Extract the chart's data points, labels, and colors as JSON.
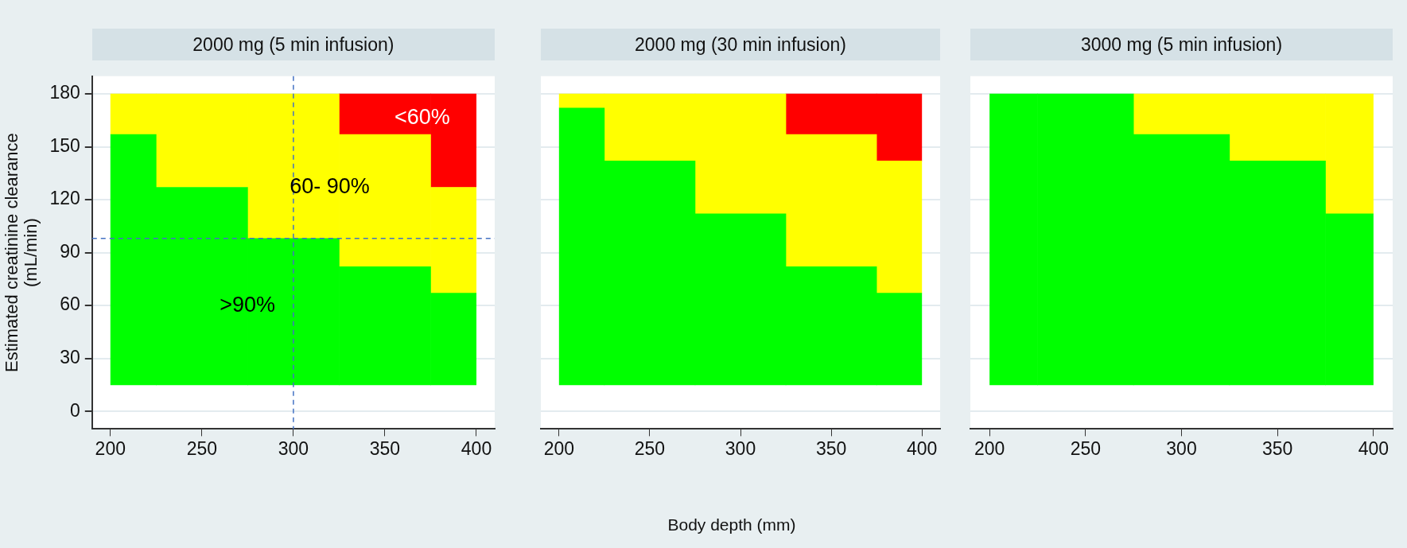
{
  "chart_data": [
    {
      "type": "bar",
      "title": "2000 mg (5 min infusion)",
      "ylabel": "Estimated creatinine clearance (mL/min)",
      "x": [
        200,
        250,
        300,
        350,
        400
      ],
      "series": [
        {
          "color": "#00ff00",
          "base": [
            15,
            15,
            15,
            15,
            15
          ],
          "values": [
            142,
            112,
            83,
            67,
            52
          ]
        },
        {
          "color": "#ffff00",
          "base": [
            157,
            127,
            98,
            82,
            67
          ],
          "values": [
            23,
            53,
            82,
            75,
            60
          ]
        },
        {
          "color": "#ff0000",
          "base": [
            null,
            null,
            null,
            157,
            127
          ],
          "values": [
            null,
            null,
            null,
            23,
            53
          ]
        }
      ],
      "xlim": [
        190,
        410
      ],
      "xticks": [
        200,
        250,
        300,
        350,
        400
      ],
      "ylim": [
        -10,
        190
      ],
      "yticks": [
        0,
        30,
        60,
        90,
        120,
        150,
        180
      ],
      "grid": "y",
      "ref_lines": [
        {
          "axis": "x",
          "value": 300,
          "color": "#4472c4",
          "line_style": "dashed"
        },
        {
          "axis": "y",
          "value": 98,
          "color": "#4472c4",
          "line_style": "dashed"
        }
      ],
      "annotations": [
        ">90%",
        "60- 90%",
        "<60%"
      ]
    },
    {
      "type": "bar",
      "title": "2000 mg (30 min infusion)",
      "xlabel": "Body depth (mm)",
      "x": [
        200,
        250,
        300,
        350,
        400
      ],
      "series": [
        {
          "color": "#00ff00",
          "base": [
            15,
            15,
            15,
            15,
            15
          ],
          "values": [
            157,
            127,
            97,
            67,
            52
          ]
        },
        {
          "color": "#ffff00",
          "base": [
            172,
            142,
            112,
            82,
            67
          ],
          "values": [
            8,
            38,
            68,
            75,
            75
          ]
        },
        {
          "color": "#ff0000",
          "base": [
            null,
            null,
            null,
            157,
            142
          ],
          "values": [
            null,
            null,
            null,
            23,
            38
          ]
        }
      ],
      "xlim": [
        190,
        410
      ],
      "xticks": [
        200,
        250,
        300,
        350,
        400
      ],
      "ylim": [
        -10,
        190
      ],
      "yticks": [
        0,
        30,
        60,
        90,
        120,
        150,
        180
      ],
      "grid": "y",
      "tick_labels": "x"
    },
    {
      "type": "bar",
      "title": "3000 mg (5 min infusion)",
      "x": [
        200,
        250,
        300,
        350,
        400
      ],
      "series": [
        {
          "color": "#00ff00",
          "base": [
            15,
            15,
            15,
            15,
            15
          ],
          "values": [
            165,
            165,
            142,
            127,
            97
          ]
        },
        {
          "color": "#ffff00",
          "base": [
            null,
            null,
            157,
            142,
            112
          ],
          "values": [
            null,
            null,
            23,
            38,
            68
          ]
        }
      ],
      "xlim": [
        190,
        410
      ],
      "xticks": [
        200,
        250,
        300,
        350,
        400
      ],
      "ylim": [
        -10,
        190
      ],
      "yticks": [
        0,
        30,
        60,
        90,
        120,
        150,
        180
      ],
      "grid": "y",
      "tick_labels": "x"
    }
  ]
}
